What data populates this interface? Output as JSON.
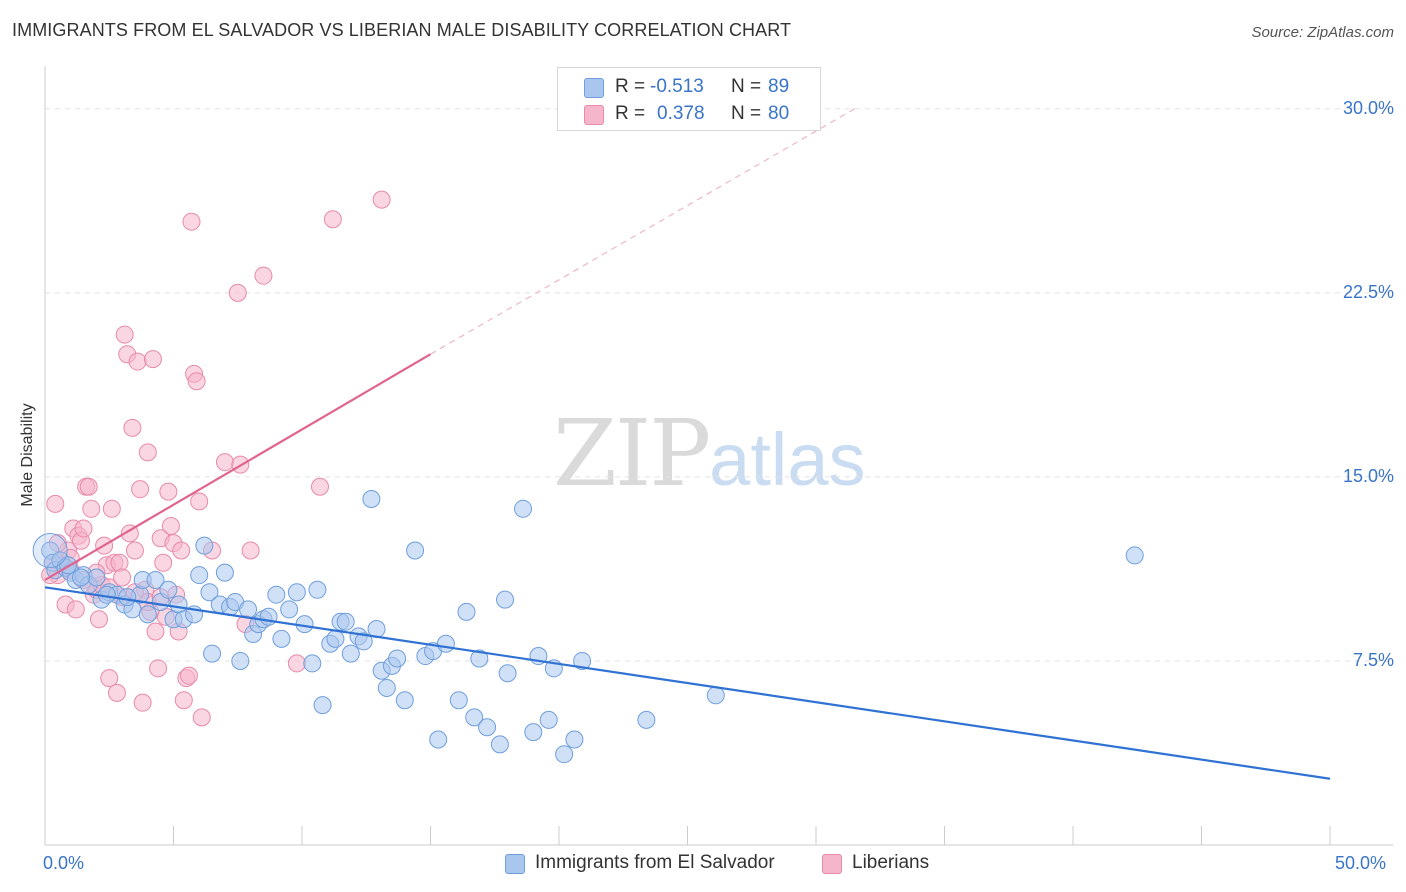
{
  "title": "IMMIGRANTS FROM EL SALVADOR VS LIBERIAN MALE DISABILITY CORRELATION CHART",
  "source": "Source: ZipAtlas.com",
  "watermark": {
    "zip": "ZIP",
    "atlas": "atlas"
  },
  "stats": [
    {
      "r_label": "R =",
      "r_value": "-0.513",
      "n_label": "N =",
      "n_value": "89",
      "color": "#a9c6ef"
    },
    {
      "r_label": "R =",
      "r_value": "0.378",
      "n_label": "N =",
      "n_value": "80",
      "color": "#f5b5cb"
    }
  ],
  "legend": [
    {
      "label": "Immigrants from El Salvador",
      "color": "#a9c6ef"
    },
    {
      "label": "Liberians",
      "color": "#f5b5cb"
    }
  ],
  "x_tick_labels": {
    "min": "0.0%",
    "max": "50.0%"
  },
  "y_tick_labels": [
    "7.5%",
    "15.0%",
    "22.5%",
    "30.0%"
  ],
  "chart_data": {
    "type": "scatter",
    "title": "IMMIGRANTS FROM EL SALVADOR VS LIBERIAN MALE DISABILITY CORRELATION CHART",
    "xlabel": "",
    "ylabel": "Male Disability",
    "xlim": [
      0,
      50
    ],
    "ylim": [
      0,
      31.5
    ],
    "x_unit": "%",
    "y_unit": "%",
    "y_ticks": [
      7.5,
      15.0,
      22.5,
      30.0
    ],
    "grid": "horizontal dashed",
    "legend_position": "bottom",
    "series": [
      {
        "name": "Immigrants from El Salvador",
        "color": "#a9c6ef",
        "stroke": "#6f9fdc",
        "trend": {
          "x0": 0,
          "y0": 10.5,
          "x1": 50,
          "y1": 2.7,
          "color": "#2f72d4"
        },
        "points": [
          [
            0.2,
            12.0
          ],
          [
            0.3,
            11.5
          ],
          [
            0.4,
            11.2
          ],
          [
            0.6,
            11.6
          ],
          [
            0.8,
            11.3
          ],
          [
            1.0,
            11.1
          ],
          [
            1.2,
            10.8
          ],
          [
            1.5,
            11.0
          ],
          [
            1.7,
            10.6
          ],
          [
            2.0,
            10.9
          ],
          [
            2.2,
            10.0
          ],
          [
            2.5,
            10.3
          ],
          [
            2.8,
            10.2
          ],
          [
            3.1,
            9.8
          ],
          [
            3.4,
            9.6
          ],
          [
            3.7,
            10.2
          ],
          [
            3.8,
            10.8
          ],
          [
            4.0,
            9.4
          ],
          [
            4.3,
            10.8
          ],
          [
            4.5,
            9.9
          ],
          [
            4.8,
            10.4
          ],
          [
            5.0,
            9.2
          ],
          [
            5.2,
            9.8
          ],
          [
            5.4,
            9.2
          ],
          [
            5.8,
            9.4
          ],
          [
            6.0,
            11.0
          ],
          [
            6.2,
            12.2
          ],
          [
            6.4,
            10.3
          ],
          [
            6.5,
            7.8
          ],
          [
            6.8,
            9.8
          ],
          [
            7.0,
            11.1
          ],
          [
            7.2,
            9.7
          ],
          [
            7.4,
            9.9
          ],
          [
            7.6,
            7.5
          ],
          [
            7.9,
            9.6
          ],
          [
            8.1,
            8.6
          ],
          [
            8.3,
            9.0
          ],
          [
            8.5,
            9.2
          ],
          [
            8.7,
            9.3
          ],
          [
            9.0,
            10.2
          ],
          [
            9.2,
            8.4
          ],
          [
            9.5,
            9.6
          ],
          [
            9.8,
            10.3
          ],
          [
            10.1,
            9.0
          ],
          [
            10.4,
            7.4
          ],
          [
            10.6,
            10.4
          ],
          [
            10.8,
            5.7
          ],
          [
            11.1,
            8.2
          ],
          [
            11.3,
            8.4
          ],
          [
            11.5,
            9.1
          ],
          [
            11.7,
            9.1
          ],
          [
            11.9,
            7.8
          ],
          [
            12.2,
            8.5
          ],
          [
            12.4,
            8.3
          ],
          [
            12.7,
            14.1
          ],
          [
            12.9,
            8.8
          ],
          [
            13.1,
            7.1
          ],
          [
            13.3,
            6.4
          ],
          [
            13.5,
            7.3
          ],
          [
            13.7,
            7.6
          ],
          [
            14.0,
            5.9
          ],
          [
            14.4,
            12.0
          ],
          [
            14.8,
            7.7
          ],
          [
            15.1,
            7.9
          ],
          [
            15.3,
            4.3
          ],
          [
            15.6,
            8.2
          ],
          [
            16.1,
            5.9
          ],
          [
            16.4,
            9.5
          ],
          [
            16.7,
            5.2
          ],
          [
            16.9,
            7.6
          ],
          [
            17.2,
            4.8
          ],
          [
            17.7,
            4.1
          ],
          [
            17.9,
            10.0
          ],
          [
            18.0,
            7.0
          ],
          [
            18.6,
            13.7
          ],
          [
            19.0,
            4.6
          ],
          [
            19.2,
            7.7
          ],
          [
            19.6,
            5.1
          ],
          [
            19.8,
            7.2
          ],
          [
            20.2,
            3.7
          ],
          [
            20.6,
            4.3
          ],
          [
            20.9,
            7.5
          ],
          [
            23.4,
            5.1
          ],
          [
            26.1,
            6.1
          ],
          [
            42.4,
            11.8
          ],
          [
            0.9,
            11.4
          ],
          [
            1.4,
            10.9
          ],
          [
            2.4,
            10.2
          ],
          [
            3.2,
            10.1
          ]
        ]
      },
      {
        "name": "Liberians",
        "color": "#f5b5cb",
        "stroke": "#e88aab",
        "trend": {
          "x0": 0,
          "y0": 10.8,
          "x1": 15,
          "y1": 20.0,
          "x2": 31.5,
          "y2": 30.0,
          "color": "#e0648e"
        },
        "points": [
          [
            0.3,
            11.5
          ],
          [
            0.4,
            13.9
          ],
          [
            0.5,
            11.0
          ],
          [
            0.6,
            11.6
          ],
          [
            0.7,
            11.4
          ],
          [
            0.8,
            9.8
          ],
          [
            0.9,
            12.0
          ],
          [
            1.0,
            11.7
          ],
          [
            1.1,
            12.9
          ],
          [
            1.2,
            9.6
          ],
          [
            1.3,
            12.6
          ],
          [
            1.4,
            12.4
          ],
          [
            1.5,
            12.9
          ],
          [
            1.6,
            14.6
          ],
          [
            1.7,
            14.6
          ],
          [
            1.8,
            13.7
          ],
          [
            1.9,
            10.2
          ],
          [
            2.0,
            10.4
          ],
          [
            2.1,
            9.2
          ],
          [
            2.2,
            10.6
          ],
          [
            2.3,
            12.2
          ],
          [
            2.4,
            11.4
          ],
          [
            2.5,
            6.8
          ],
          [
            2.6,
            13.7
          ],
          [
            2.7,
            11.5
          ],
          [
            2.8,
            6.2
          ],
          [
            2.9,
            11.5
          ],
          [
            3.0,
            10.1
          ],
          [
            3.1,
            20.8
          ],
          [
            3.2,
            20.0
          ],
          [
            3.3,
            12.7
          ],
          [
            3.4,
            17.0
          ],
          [
            3.5,
            12.0
          ],
          [
            3.6,
            19.7
          ],
          [
            3.7,
            14.5
          ],
          [
            3.8,
            5.8
          ],
          [
            3.9,
            10.4
          ],
          [
            4.0,
            16.0
          ],
          [
            4.1,
            9.5
          ],
          [
            4.2,
            19.8
          ],
          [
            4.3,
            8.7
          ],
          [
            4.4,
            7.2
          ],
          [
            4.5,
            12.5
          ],
          [
            4.6,
            11.5
          ],
          [
            4.7,
            9.3
          ],
          [
            4.8,
            14.4
          ],
          [
            4.9,
            13.0
          ],
          [
            5.0,
            12.3
          ],
          [
            5.1,
            10.2
          ],
          [
            5.2,
            8.7
          ],
          [
            5.3,
            12.0
          ],
          [
            5.4,
            5.9
          ],
          [
            5.5,
            6.8
          ],
          [
            5.6,
            6.9
          ],
          [
            5.7,
            25.4
          ],
          [
            5.8,
            19.2
          ],
          [
            5.9,
            18.9
          ],
          [
            6.0,
            14.0
          ],
          [
            6.1,
            5.2
          ],
          [
            6.5,
            12.0
          ],
          [
            7.0,
            15.6
          ],
          [
            7.5,
            22.5
          ],
          [
            7.6,
            15.5
          ],
          [
            7.8,
            9.0
          ],
          [
            8.0,
            12.0
          ],
          [
            8.5,
            23.2
          ],
          [
            9.8,
            7.4
          ],
          [
            10.7,
            14.6
          ],
          [
            11.2,
            25.5
          ],
          [
            13.1,
            26.3
          ],
          [
            0.2,
            11.0
          ],
          [
            0.5,
            12.3
          ],
          [
            1.0,
            11.2
          ],
          [
            1.5,
            10.8
          ],
          [
            2.0,
            11.1
          ],
          [
            2.5,
            10.5
          ],
          [
            3.0,
            10.9
          ],
          [
            3.5,
            10.3
          ],
          [
            4.0,
            9.9
          ],
          [
            4.5,
            10.1
          ]
        ]
      }
    ]
  }
}
